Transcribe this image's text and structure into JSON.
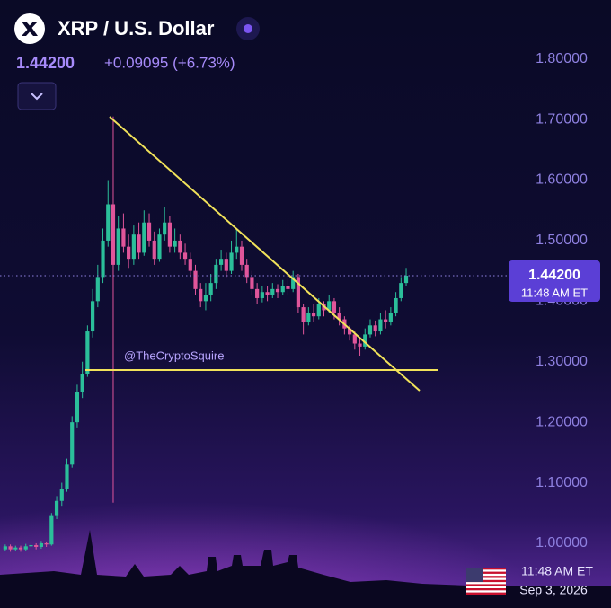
{
  "chart_data": {
    "type": "candlestick",
    "title": "XRP / U.S. Dollar",
    "price_label": "1.44200",
    "change_label": "+0.09095 (+6.73%)",
    "watermark": "@TheCryptoSquire",
    "footer_time": "11:48 AM ET",
    "footer_date": "Sep 3, 2026",
    "up_color": "#2bbf9a",
    "down_color": "#e0559a",
    "ylim": [
      0.948,
      1.853
    ],
    "yticks": [
      {
        "value": 1.0,
        "label": "1.00000"
      },
      {
        "value": 1.1,
        "label": "1.10000"
      },
      {
        "value": 1.2,
        "label": "1.20000"
      },
      {
        "value": 1.3,
        "label": "1.30000"
      },
      {
        "value": 1.4,
        "label": "1.40000"
      },
      {
        "value": 1.5,
        "label": "1.50000"
      },
      {
        "value": 1.6,
        "label": "1.60000"
      },
      {
        "value": 1.7,
        "label": "1.70000"
      },
      {
        "value": 1.8,
        "label": "1.80000"
      }
    ],
    "last_price": {
      "value": 1.442,
      "label": "1.44200",
      "time": "11:48 AM ET"
    },
    "open": [
      0.99,
      0.995,
      0.99,
      0.993,
      0.99,
      0.995,
      0.997,
      0.994,
      1.0,
      0.998,
      1.045,
      1.07,
      1.09,
      1.13,
      1.2,
      1.25,
      1.28,
      1.35,
      1.4,
      1.44,
      1.5,
      1.56,
      1.46,
      1.52,
      1.49,
      1.47,
      1.51,
      1.48,
      1.53,
      1.5,
      1.47,
      1.51,
      1.53,
      1.49,
      1.5,
      1.48,
      1.47,
      1.45,
      1.42,
      1.4,
      1.41,
      1.43,
      1.46,
      1.47,
      1.45,
      1.48,
      1.49,
      1.46,
      1.44,
      1.42,
      1.405,
      1.415,
      1.41,
      1.42,
      1.415,
      1.425,
      1.42,
      1.44,
      1.39,
      1.365,
      1.38,
      1.375,
      1.395,
      1.385,
      1.4,
      1.38,
      1.37,
      1.355,
      1.345,
      1.33,
      1.325,
      1.345,
      1.36,
      1.35,
      1.37,
      1.365,
      1.38,
      1.405,
      1.43
    ],
    "high": [
      0.998,
      0.998,
      0.996,
      0.996,
      0.999,
      1.001,
      1.0,
      1.004,
      1.003,
      1.05,
      1.078,
      1.1,
      1.14,
      1.21,
      1.262,
      1.3,
      1.36,
      1.42,
      1.46,
      1.52,
      1.6,
      1.705,
      1.54,
      1.545,
      1.51,
      1.525,
      1.53,
      1.55,
      1.545,
      1.515,
      1.52,
      1.555,
      1.54,
      1.52,
      1.51,
      1.495,
      1.48,
      1.46,
      1.43,
      1.43,
      1.445,
      1.47,
      1.485,
      1.48,
      1.5,
      1.52,
      1.5,
      1.47,
      1.45,
      1.43,
      1.425,
      1.425,
      1.43,
      1.428,
      1.435,
      1.44,
      1.45,
      1.445,
      1.395,
      1.39,
      1.395,
      1.405,
      1.4,
      1.41,
      1.405,
      1.39,
      1.375,
      1.36,
      1.35,
      1.34,
      1.355,
      1.37,
      1.368,
      1.38,
      1.385,
      1.39,
      1.415,
      1.44,
      1.455
    ],
    "low": [
      0.987,
      0.986,
      0.987,
      0.986,
      0.987,
      0.992,
      0.99,
      0.991,
      0.994,
      0.996,
      1.04,
      1.062,
      1.085,
      1.125,
      1.19,
      1.24,
      1.275,
      1.34,
      1.39,
      1.43,
      1.49,
      1.067,
      1.45,
      1.48,
      1.455,
      1.46,
      1.47,
      1.475,
      1.49,
      1.46,
      1.465,
      1.5,
      1.48,
      1.48,
      1.47,
      1.46,
      1.44,
      1.41,
      1.39,
      1.385,
      1.4,
      1.42,
      1.45,
      1.44,
      1.445,
      1.47,
      1.45,
      1.43,
      1.41,
      1.395,
      1.398,
      1.4,
      1.405,
      1.405,
      1.41,
      1.41,
      1.415,
      1.38,
      1.345,
      1.36,
      1.365,
      1.37,
      1.375,
      1.38,
      1.37,
      1.36,
      1.345,
      1.335,
      1.32,
      1.31,
      1.32,
      1.34,
      1.342,
      1.345,
      1.355,
      1.36,
      1.375,
      1.4,
      1.425
    ],
    "close": [
      0.995,
      0.99,
      0.993,
      0.99,
      0.995,
      0.997,
      0.994,
      1.0,
      0.998,
      1.045,
      1.07,
      1.09,
      1.13,
      1.2,
      1.25,
      1.28,
      1.35,
      1.4,
      1.44,
      1.5,
      1.56,
      1.46,
      1.52,
      1.49,
      1.47,
      1.51,
      1.48,
      1.53,
      1.5,
      1.47,
      1.51,
      1.53,
      1.49,
      1.5,
      1.48,
      1.47,
      1.45,
      1.42,
      1.4,
      1.41,
      1.43,
      1.46,
      1.47,
      1.45,
      1.48,
      1.49,
      1.46,
      1.44,
      1.42,
      1.405,
      1.415,
      1.41,
      1.42,
      1.415,
      1.425,
      1.42,
      1.44,
      1.39,
      1.365,
      1.38,
      1.375,
      1.395,
      1.385,
      1.4,
      1.38,
      1.37,
      1.355,
      1.345,
      1.33,
      1.325,
      1.345,
      1.36,
      1.35,
      1.37,
      1.365,
      1.38,
      1.405,
      1.43,
      1.442
    ]
  }
}
